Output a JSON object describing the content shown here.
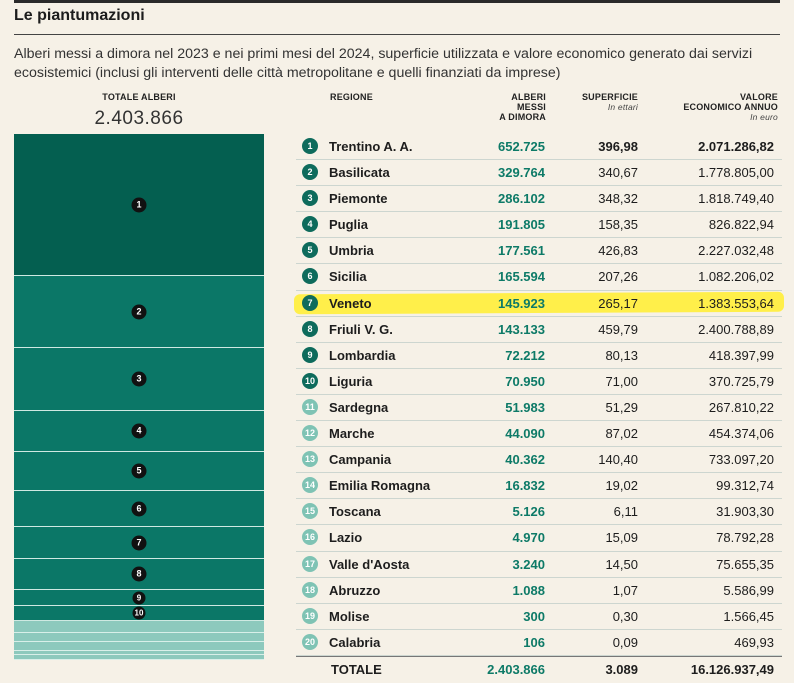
{
  "title": "Le piantumazioni",
  "subtitle": "Alberi messi a dimora nel 2023 e nei primi mesi del 2024, superficie utilizzata e valore economico generato dai servizi ecosistemici (inclusi gli interventi delle città metropolitane e quelli finanziati da imprese)",
  "left": {
    "header": "TOTALE ALBERI",
    "total": "2.403.866"
  },
  "columns": {
    "regione": "REGIONE",
    "alberi_1": "ALBERI",
    "alberi_2": "MESSI",
    "alberi_3": "A DIMORA",
    "superficie": "SUPERFICIE",
    "superficie_unit": "In ettari",
    "valore_1": "VALORE",
    "valore_2": "ECONOMICO ANNUO",
    "valore_unit": "In euro"
  },
  "rows": [
    {
      "rank": "1",
      "region": "Trentino A. A.",
      "trees": "652.725",
      "surface": "396,98",
      "value": "2.071.286,82"
    },
    {
      "rank": "2",
      "region": "Basilicata",
      "trees": "329.764",
      "surface": "340,67",
      "value": "1.778.805,00"
    },
    {
      "rank": "3",
      "region": "Piemonte",
      "trees": "286.102",
      "surface": "348,32",
      "value": "1.818.749,40"
    },
    {
      "rank": "4",
      "region": "Puglia",
      "trees": "191.805",
      "surface": "158,35",
      "value": "826.822,94"
    },
    {
      "rank": "5",
      "region": "Umbria",
      "trees": "177.561",
      "surface": "426,83",
      "value": "2.227.032,48"
    },
    {
      "rank": "6",
      "region": "Sicilia",
      "trees": "165.594",
      "surface": "207,26",
      "value": "1.082.206,02"
    },
    {
      "rank": "7",
      "region": "Veneto",
      "trees": "145.923",
      "surface": "265,17",
      "value": "1.383.553,64"
    },
    {
      "rank": "8",
      "region": "Friuli V. G.",
      "trees": "143.133",
      "surface": "459,79",
      "value": "2.400.788,89"
    },
    {
      "rank": "9",
      "region": "Lombardia",
      "trees": "72.212",
      "surface": "80,13",
      "value": "418.397,99"
    },
    {
      "rank": "10",
      "region": "Liguria",
      "trees": "70.950",
      "surface": "71,00",
      "value": "370.725,79"
    },
    {
      "rank": "11",
      "region": "Sardegna",
      "trees": "51.983",
      "surface": "51,29",
      "value": "267.810,22"
    },
    {
      "rank": "12",
      "region": "Marche",
      "trees": "44.090",
      "surface": "87,02",
      "value": "454.374,06"
    },
    {
      "rank": "13",
      "region": "Campania",
      "trees": "40.362",
      "surface": "140,40",
      "value": "733.097,20"
    },
    {
      "rank": "14",
      "region": "Emilia Romagna",
      "trees": "16.832",
      "surface": "19,02",
      "value": "99.312,74"
    },
    {
      "rank": "15",
      "region": "Toscana",
      "trees": "5.126",
      "surface": "6,11",
      "value": "31.903,30"
    },
    {
      "rank": "16",
      "region": "Lazio",
      "trees": "4.970",
      "surface": "15,09",
      "value": "78.792,28"
    },
    {
      "rank": "17",
      "region": "Valle d'Aosta",
      "trees": "3.240",
      "surface": "14,50",
      "value": "75.655,35"
    },
    {
      "rank": "18",
      "region": "Abruzzo",
      "trees": "1.088",
      "surface": "1,07",
      "value": "5.586,99"
    },
    {
      "rank": "19",
      "region": "Molise",
      "trees": "300",
      "surface": "0,30",
      "value": "1.566,45"
    },
    {
      "rank": "20",
      "region": "Calabria",
      "trees": "106",
      "surface": "0,09",
      "value": "469,93"
    }
  ],
  "total_row": {
    "label": "TOTALE",
    "trees": "2.403.866",
    "surface": "3.089",
    "value": "16.126.937,49"
  },
  "colors": {
    "dark_green": "#045f50",
    "green": "#0b7767",
    "light_green": "#7fc3b4",
    "highlight": "#ffef4a"
  }
}
